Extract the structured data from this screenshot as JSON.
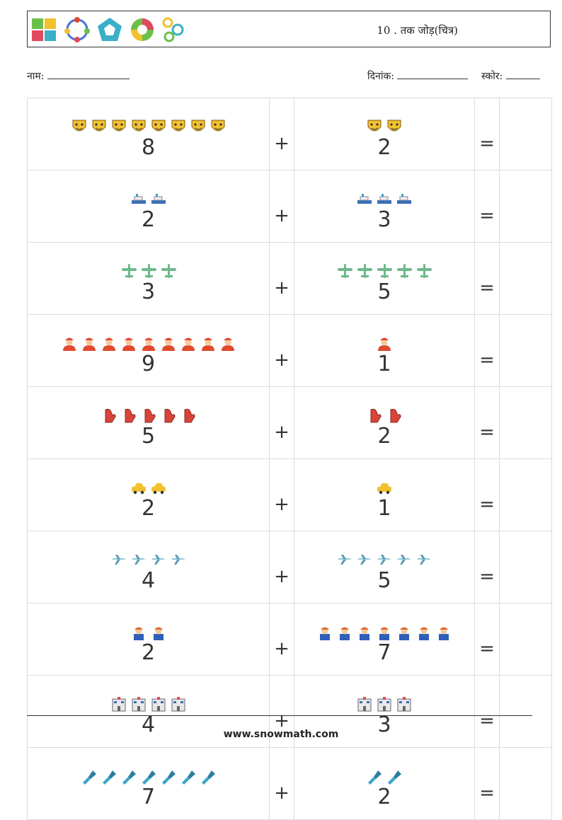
{
  "header": {
    "title": "10 . तक जोड़(चित्र)"
  },
  "form": {
    "name_label": "नाम:",
    "date_label": "दिनांक:",
    "score_label": "स्कोर:"
  },
  "operators": {
    "plus": "+",
    "equals": "="
  },
  "rows": [
    {
      "icon": "theater-mask-icon",
      "a": "8",
      "b": "2",
      "color": "#f2c12e"
    },
    {
      "icon": "ship-icon",
      "a": "2",
      "b": "3",
      "color": "#3aa0d8"
    },
    {
      "icon": "airplane-icon",
      "a": "3",
      "b": "5",
      "color": "#6db98a"
    },
    {
      "icon": "firefighter-icon",
      "a": "9",
      "b": "1",
      "color": "#e04a2e"
    },
    {
      "icon": "mitten-icon",
      "a": "5",
      "b": "2",
      "color": "#d9443a"
    },
    {
      "icon": "car-icon",
      "a": "2",
      "b": "1",
      "color": "#f2c12e"
    },
    {
      "icon": "jet-icon",
      "a": "4",
      "b": "5",
      "color": "#8fc6d8"
    },
    {
      "icon": "worker-icon",
      "a": "2",
      "b": "7",
      "color": "#e06a2e"
    },
    {
      "icon": "building-icon",
      "a": "4",
      "b": "3",
      "color": "#e8e8e8"
    },
    {
      "icon": "flashlight-icon",
      "a": "7",
      "b": "2",
      "color": "#3aa6c8"
    }
  ],
  "footer": {
    "url": "www.snowmath.com"
  }
}
